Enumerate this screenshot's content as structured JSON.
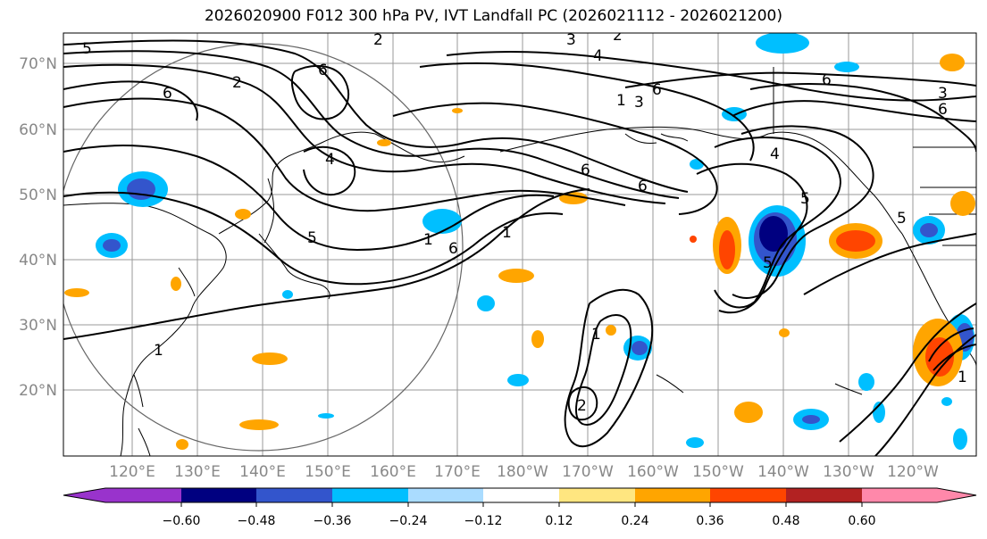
{
  "title": "2026020900 F012 300 hPa PV, IVT Landfall PC (2026021112 - 2026021200)",
  "latitude_labels": [
    "70°N",
    "60°N",
    "50°N",
    "40°N",
    "30°N",
    "20°N"
  ],
  "longitude_labels": [
    "120°E",
    "130°E",
    "140°E",
    "150°E",
    "160°E",
    "170°E",
    "180°W",
    "170°W",
    "160°W",
    "150°W",
    "140°W",
    "130°W",
    "120°W"
  ],
  "colorbar": {
    "ticks": [
      "−0.60",
      "−0.48",
      "−0.36",
      "−0.24",
      "−0.12",
      "0.12",
      "0.24",
      "0.36",
      "0.48",
      "0.60"
    ],
    "colors": [
      "#9933cc",
      "#000080",
      "#3355cc",
      "#00bfff",
      "#aadcff",
      "#ffffff",
      "#ffe680",
      "#ffa500",
      "#ff4500",
      "#b22222",
      "#ff88aa"
    ]
  },
  "contour_labels": [
    "2",
    "3",
    "2",
    "5",
    "6",
    "2",
    "6",
    "6",
    "1",
    "4",
    "3",
    "6",
    "6",
    "3",
    "4",
    "4",
    "6",
    "6",
    "5",
    "5",
    "1",
    "1",
    "5",
    "6",
    "1",
    "5",
    "2",
    "1",
    "1"
  ],
  "colors": {
    "negative_strong": "#000080",
    "negative_mid": "#3355cc",
    "negative_light": "#00bfff",
    "positive_light": "#ffa500",
    "positive_strong": "#ff4500",
    "positive_dark": "#b22222"
  }
}
